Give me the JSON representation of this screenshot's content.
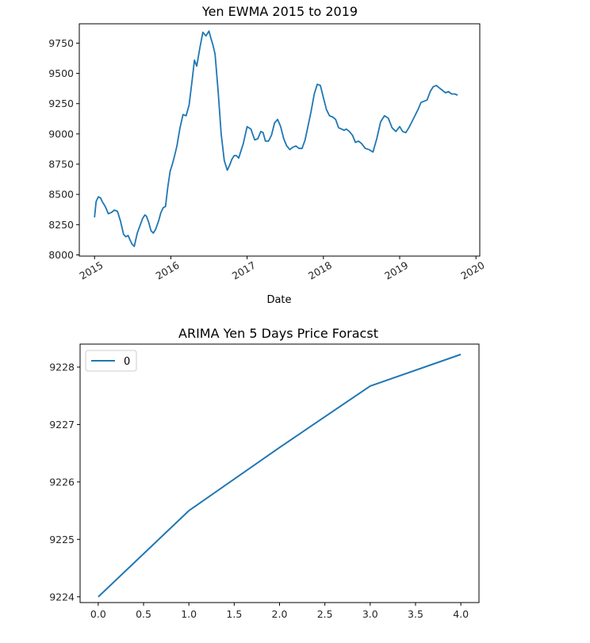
{
  "chart_data": [
    {
      "type": "line",
      "title": "Yen EWMA 2015 to 2019",
      "xlabel": "Date",
      "ylabel": "",
      "x_ticks": [
        "2015",
        "2016",
        "2017",
        "2018",
        "2019",
        "2020"
      ],
      "y_ticks": [
        8000,
        8250,
        8500,
        8750,
        9000,
        9250,
        9500,
        9750
      ],
      "xlim": [
        2014.8,
        2020.05
      ],
      "ylim": [
        7990,
        9910
      ],
      "grid": false,
      "legend": false,
      "color": "#1f77b4",
      "series": [
        {
          "x": [
            2015.0,
            2015.02,
            2015.05,
            2015.08,
            2015.1,
            2015.14,
            2015.18,
            2015.22,
            2015.26,
            2015.3,
            2015.34,
            2015.38,
            2015.41,
            2015.44,
            2015.46,
            2015.49,
            2015.52,
            2015.56,
            2015.6,
            2015.63,
            2015.66,
            2015.68,
            2015.71,
            2015.74,
            2015.77,
            2015.8,
            2015.84,
            2015.87,
            2015.9,
            2015.93,
            2015.96,
            2015.99,
            2016.02,
            2016.05,
            2016.08,
            2016.12,
            2016.16,
            2016.2,
            2016.24,
            2016.28,
            2016.31,
            2016.34,
            2016.38,
            2016.42,
            2016.46,
            2016.5,
            2016.53,
            2016.55,
            2016.58,
            2016.62,
            2016.66,
            2016.7,
            2016.74,
            2016.77,
            2016.8,
            2016.83,
            2016.86,
            2016.89,
            2016.92,
            2016.95,
            2017.0,
            2017.05,
            2017.1,
            2017.14,
            2017.18,
            2017.21,
            2017.24,
            2017.28,
            2017.32,
            2017.36,
            2017.4,
            2017.44,
            2017.48,
            2017.52,
            2017.56,
            2017.6,
            2017.64,
            2017.68,
            2017.72,
            2017.76,
            2017.8,
            2017.84,
            2017.88,
            2017.92,
            2017.96,
            2018.0,
            2018.04,
            2018.08,
            2018.12,
            2018.16,
            2018.2,
            2018.24,
            2018.27,
            2018.3,
            2018.34,
            2018.38,
            2018.42,
            2018.46,
            2018.5,
            2018.55,
            2018.6,
            2018.65,
            2018.7,
            2018.75,
            2018.8,
            2018.85,
            2018.9,
            2018.95,
            2019.0,
            2019.04,
            2019.08,
            2019.12,
            2019.16,
            2019.2,
            2019.24,
            2019.28,
            2019.32,
            2019.36,
            2019.4,
            2019.44,
            2019.48,
            2019.52,
            2019.56,
            2019.6,
            2019.64,
            2019.68,
            2019.72,
            2019.76
          ],
          "y": [
            8310,
            8440,
            8480,
            8470,
            8440,
            8400,
            8340,
            8350,
            8370,
            8360,
            8280,
            8170,
            8150,
            8160,
            8130,
            8090,
            8070,
            8180,
            8250,
            8300,
            8330,
            8320,
            8270,
            8200,
            8180,
            8210,
            8280,
            8350,
            8390,
            8400,
            8560,
            8690,
            8750,
            8820,
            8900,
            9050,
            9160,
            9150,
            9240,
            9450,
            9610,
            9560,
            9710,
            9840,
            9810,
            9850,
            9780,
            9740,
            9660,
            9350,
            9000,
            8780,
            8700,
            8740,
            8790,
            8820,
            8820,
            8800,
            8860,
            8920,
            9060,
            9040,
            8950,
            8960,
            9020,
            9010,
            8940,
            8940,
            8990,
            9090,
            9120,
            9060,
            8960,
            8900,
            8870,
            8890,
            8900,
            8880,
            8880,
            8950,
            9070,
            9190,
            9330,
            9410,
            9400,
            9300,
            9200,
            9150,
            9140,
            9120,
            9050,
            9040,
            9030,
            9040,
            9020,
            8990,
            8930,
            8940,
            8920,
            8880,
            8870,
            8850,
            8960,
            9100,
            9150,
            9130,
            9050,
            9020,
            9060,
            9020,
            9010,
            9050,
            9100,
            9150,
            9200,
            9260,
            9270,
            9280,
            9350,
            9390,
            9400,
            9380,
            9360,
            9340,
            9350,
            9330,
            9330,
            9320
          ]
        }
      ]
    },
    {
      "type": "line",
      "title": "ARIMA Yen 5 Days Price Foracst",
      "xlabel": "",
      "ylabel": "",
      "x_ticks": [
        0.0,
        0.5,
        1.0,
        1.5,
        2.0,
        2.5,
        3.0,
        3.5,
        4.0
      ],
      "x_tick_labels": [
        "0.0",
        "0.5",
        "1.0",
        "1.5",
        "2.0",
        "2.5",
        "3.0",
        "3.5",
        "4.0"
      ],
      "y_ticks": [
        9224,
        9225,
        9226,
        9227,
        9228
      ],
      "xlim": [
        -0.2,
        4.2
      ],
      "ylim": [
        9223.9,
        9228.4
      ],
      "grid": false,
      "legend": "upper-left",
      "color": "#1f77b4",
      "series": [
        {
          "name": "0",
          "x": [
            0,
            1,
            2,
            3,
            4
          ],
          "y": [
            9224.0,
            9225.5,
            9226.6,
            9227.67,
            9228.22
          ]
        }
      ]
    }
  ]
}
